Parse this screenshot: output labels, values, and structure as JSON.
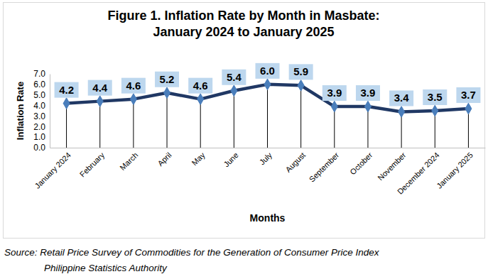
{
  "chart_data": {
    "type": "line",
    "title": [
      "Figure 1. Inflation Rate by Month in Masbate:",
      "January 2024 to January 2025"
    ],
    "x_label": "Months",
    "y_label": "Inflation Rate",
    "categories": [
      "January 2024",
      "February",
      "March",
      "April",
      "May",
      "June",
      "July",
      "August",
      "September",
      "October",
      "November",
      "December 2024",
      "January 2025"
    ],
    "values": [
      4.2,
      4.4,
      4.6,
      5.2,
      4.6,
      5.4,
      6.0,
      5.9,
      3.9,
      3.9,
      3.4,
      3.5,
      3.7
    ],
    "value_labels": [
      "4.2",
      "4.4",
      "4.6",
      "5.2",
      "4.6",
      "5.4",
      "6.0",
      "5.9",
      "3.9",
      "3.9",
      "3.4",
      "3.5",
      "3.7"
    ],
    "color": "#203864",
    "marker": "diamond",
    "line_style": "solid",
    "data_labels": true,
    "grid": false,
    "ylim": [
      0,
      7
    ],
    "yticks": [
      {
        "value": 0,
        "label": "0.0"
      },
      {
        "value": 1,
        "label": "1.0"
      },
      {
        "value": 2,
        "label": "2.0"
      },
      {
        "value": 3,
        "label": "3.0"
      },
      {
        "value": 4,
        "label": "4.0"
      },
      {
        "value": 5,
        "label": "5.0"
      },
      {
        "value": 6,
        "label": "6.0"
      },
      {
        "value": 7,
        "label": "7.0"
      }
    ],
    "source": [
      "Source: Retail Price Survey of Commodities for the Generation of Consumer Price Index",
      "Philippine Statistics Authority"
    ]
  }
}
